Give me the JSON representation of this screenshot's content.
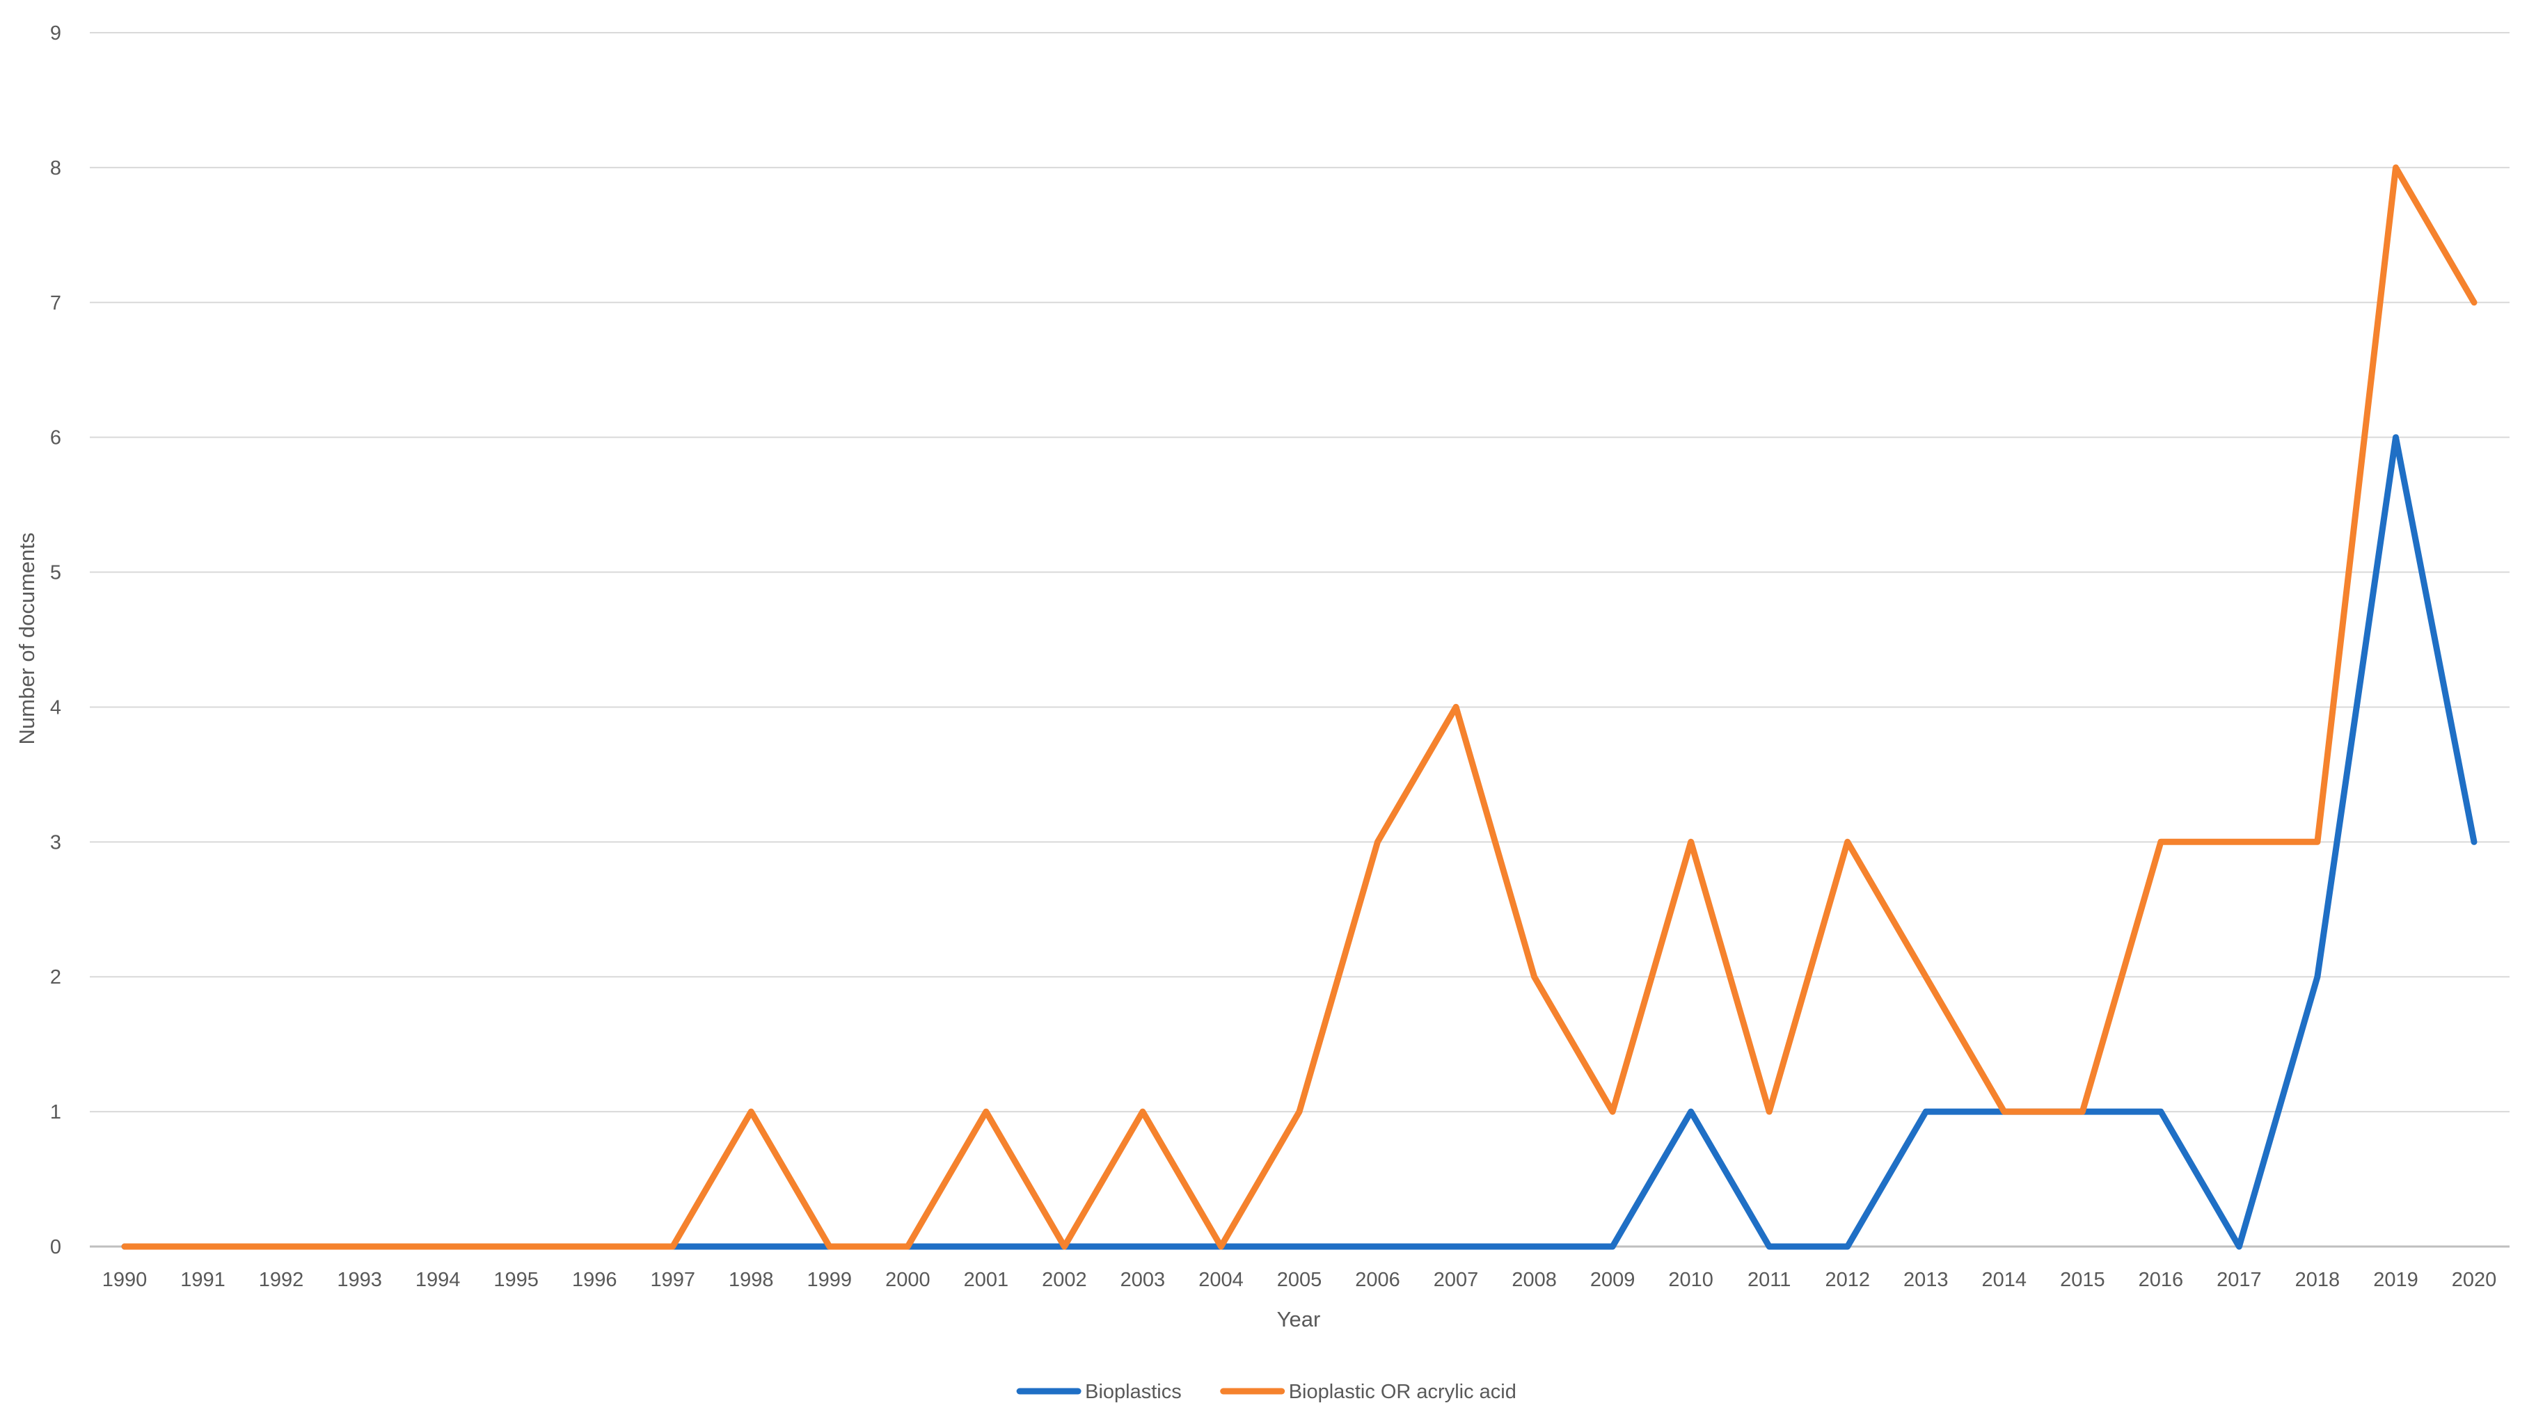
{
  "chart_data": {
    "type": "line",
    "title": "",
    "xlabel": "Year",
    "ylabel": "Number of documents",
    "ylim": [
      0,
      9
    ],
    "y_ticks": [
      0,
      1,
      2,
      3,
      4,
      5,
      6,
      7,
      8,
      9
    ],
    "grid": "horizontal",
    "legend_position": "bottom",
    "categories": [
      "1990",
      "1991",
      "1992",
      "1993",
      "1994",
      "1995",
      "1996",
      "1997",
      "1998",
      "1999",
      "2000",
      "2001",
      "2002",
      "2003",
      "2004",
      "2005",
      "2006",
      "2007",
      "2008",
      "2009",
      "2010",
      "2011",
      "2012",
      "2013",
      "2014",
      "2015",
      "2016",
      "2017",
      "2018",
      "2019",
      "2020"
    ],
    "series": [
      {
        "name": "Bioplastics",
        "color": "#1f6fc5",
        "values": [
          0,
          0,
          0,
          0,
          0,
          0,
          0,
          0,
          0,
          0,
          0,
          0,
          0,
          0,
          0,
          0,
          0,
          0,
          0,
          0,
          1,
          0,
          0,
          1,
          1,
          1,
          1,
          0,
          2,
          6,
          3
        ]
      },
      {
        "name": "Bioplastic OR acrylic acid",
        "color": "#f5822d",
        "values": [
          0,
          0,
          0,
          0,
          0,
          0,
          0,
          0,
          1,
          0,
          0,
          1,
          0,
          1,
          0,
          1,
          3,
          4,
          2,
          1,
          3,
          1,
          3,
          2,
          1,
          1,
          3,
          3,
          3,
          8,
          7
        ]
      }
    ]
  }
}
